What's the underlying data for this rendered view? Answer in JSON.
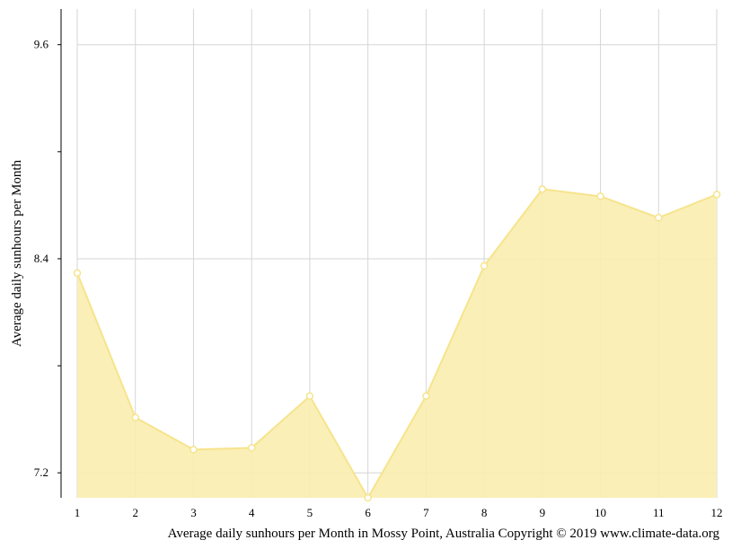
{
  "chart_data": {
    "type": "area",
    "x": [
      1,
      2,
      3,
      4,
      5,
      6,
      7,
      8,
      9,
      10,
      11,
      12
    ],
    "values": [
      8.32,
      7.51,
      7.33,
      7.34,
      7.63,
      7.06,
      7.63,
      8.36,
      8.79,
      8.75,
      8.63,
      8.76
    ],
    "x_tick_labels": [
      "1",
      "2",
      "3",
      "4",
      "5",
      "6",
      "7",
      "8",
      "9",
      "10",
      "11",
      "12"
    ],
    "y_ticks": [
      7.2,
      8.4,
      9.6
    ],
    "y_tick_labels": [
      "7.2",
      "8.4",
      "9.6"
    ],
    "ylim": [
      7.06,
      9.8
    ],
    "ylabel": "Average daily sunhours per Month",
    "caption": "Average daily sunhours per Month in Mossy Point, Australia Copyright © 2019 www.climate-data.org",
    "grid": true,
    "colors": {
      "area_fill": "#f9edaf",
      "area_line": "#f6e48c",
      "grid": "#d6d6d6",
      "axis": "#000000"
    }
  }
}
